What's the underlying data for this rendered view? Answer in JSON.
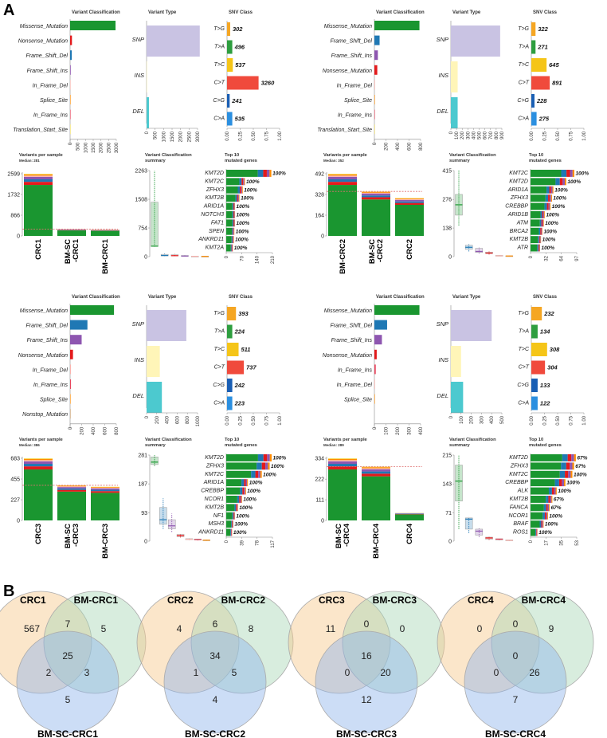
{
  "panel_labels": {
    "a": "A",
    "b": "B"
  },
  "common": {
    "vc_title": "Variant Classification",
    "vt_title": "Variant Type",
    "snv_title": "SNV Class",
    "vps_title": "Variants per sample",
    "vcs_title_1": "Variant Classification",
    "vcs_title_2": "summary",
    "top_title_1": "Top 10",
    "top_title_2": "mutated genes"
  },
  "colors": {
    "Missense_Mutation": "#1a9630",
    "Nonsense_Mutation": "#e31a1c",
    "Frame_Shift_Del": "#1f78b4",
    "Frame_Shift_Ins": "#8e56b0",
    "In_Frame_Del": "#fbb4ae",
    "In_Frame_Ins": "#e8475e",
    "Splice_Site": "#ff8c00",
    "Translation_Start_Site": "#f2e05a",
    "Nonstop_Mutation": "#c89c6b",
    "SNP": "#c9c3e3",
    "INS": "#fff5b8",
    "DEL": "#4cc9cf",
    "T>G": "#f5a623",
    "T>A": "#2e9e3f",
    "T>C": "#f5c518",
    "C>T": "#f04a3c",
    "C>G": "#1a5fb4",
    "C>A": "#2b8fe0",
    "genebar": "#1a9630",
    "median": "#e07070"
  },
  "chart_data": [
    {
      "type": "bar",
      "id": "crc1-variant-classification",
      "title": "Variant Classification",
      "categories": [
        "Missense_Mutation",
        "Nonsense_Mutation",
        "Frame_Shift_Del",
        "Frame_Shift_Ins",
        "In_Frame_Del",
        "Splice_Site",
        "In_Frame_Ins",
        "Translation_Start_Site"
      ],
      "values": [
        2950,
        120,
        110,
        40,
        15,
        15,
        5,
        3
      ],
      "xlim": [
        0,
        3000
      ],
      "xticks": [
        "0",
        "500",
        "1000",
        "1500",
        "2000",
        "2500",
        "3000"
      ]
    },
    {
      "type": "bar",
      "id": "crc1-variant-type",
      "title": "Variant Type",
      "categories": [
        "SNP",
        "INS",
        "DEL"
      ],
      "values": [
        3130,
        10,
        140
      ],
      "xlim": [
        0,
        3000
      ],
      "xticks": [
        "0",
        "500",
        "1000",
        "1500",
        "2000",
        "2500",
        "3000"
      ]
    },
    {
      "type": "bar",
      "id": "crc1-snv-class",
      "title": "SNV Class",
      "categories": [
        "T>G",
        "T>A",
        "T>C",
        "C>T",
        "C>G",
        "C>A"
      ],
      "values": [
        0.06,
        0.1,
        0.11,
        0.6,
        0.05,
        0.1
      ],
      "labels": [
        "302",
        "496",
        "537",
        "3260",
        "241",
        "535"
      ],
      "xlim": [
        0,
        1
      ],
      "xticks": [
        "0.00",
        "0.25",
        "0.50",
        "0.75",
        "1.00"
      ]
    },
    {
      "type": "bar",
      "id": "crc1-variants-per-sample",
      "title": "Variants per sample",
      "subtitle": "Median: 281",
      "categories": [
        "CRC1",
        "BM-SC\n-CRC1",
        "BM-CRC1"
      ],
      "totals": [
        2599,
        281,
        260
      ],
      "median": 281,
      "ylim": [
        0,
        2599
      ],
      "yticks": [
        "0",
        "866",
        "1732",
        "2599"
      ]
    },
    {
      "type": "boxplot",
      "id": "crc1-variant-classification-summary",
      "title": "Variant Classification summary",
      "series": [
        {
          "name": "Missense_Mutation",
          "min": 260,
          "q1": 270,
          "median": 275,
          "q3": 1430,
          "max": 2260
        },
        {
          "name": "Frame_Shift_Del",
          "min": 10,
          "q1": 20,
          "median": 30,
          "q3": 60,
          "max": 80
        },
        {
          "name": "Nonsense_Mutation",
          "min": 10,
          "q1": 20,
          "median": 25,
          "q3": 50,
          "max": 70
        },
        {
          "name": "Frame_Shift_Ins",
          "min": 5,
          "q1": 10,
          "median": 15,
          "q3": 30,
          "max": 40
        },
        {
          "name": "In_Frame_Del",
          "min": 2,
          "q1": 5,
          "median": 8,
          "q3": 12,
          "max": 15
        },
        {
          "name": "Splice_Site",
          "min": 2,
          "q1": 4,
          "median": 6,
          "q3": 10,
          "max": 12
        }
      ],
      "ylim": [
        0,
        2263
      ],
      "yticks": [
        "0",
        "754",
        "1508",
        "2263"
      ]
    },
    {
      "type": "bar",
      "id": "crc1-top10-genes",
      "title": "Top 10 mutated genes",
      "categories": [
        "KMT2D",
        "KMT2C",
        "ZFHX3",
        "KMT2B",
        "ARID1A",
        "NOTCH3",
        "FAT1",
        "SPEN",
        "ANKRD11",
        "KMT2A"
      ],
      "values": [
        205,
        85,
        75,
        60,
        40,
        40,
        40,
        37,
        35,
        30
      ],
      "labels": [
        "100%",
        "100%",
        "100%",
        "100%",
        "100%",
        "100%",
        "100%",
        "100%",
        "100%",
        "100%"
      ],
      "xlim": [
        0,
        210
      ],
      "xticks": [
        "0",
        "70",
        "140",
        "210"
      ]
    },
    {
      "type": "bar",
      "id": "crc2-variant-classification",
      "title": "Variant Classification",
      "categories": [
        "Missense_Mutation",
        "Frame_Shift_Del",
        "Frame_Shift_Ins",
        "Nonsense_Mutation",
        "In_Frame_Del",
        "Splice_Site",
        "In_Frame_Ins",
        "Translation_Start_Site"
      ],
      "values": [
        780,
        90,
        60,
        50,
        10,
        8,
        3,
        2
      ],
      "xlim": [
        0,
        800
      ],
      "xticks": [
        "0",
        "200",
        "400",
        "600",
        "800"
      ]
    },
    {
      "type": "bar",
      "id": "crc2-variant-type",
      "title": "Variant Type",
      "categories": [
        "SNP",
        "INS",
        "DEL"
      ],
      "values": [
        870,
        120,
        120
      ],
      "xlim": [
        0,
        900
      ],
      "xticks": [
        "0",
        "100",
        "200",
        "300",
        "400",
        "500",
        "600",
        "700",
        "800",
        "900"
      ]
    },
    {
      "type": "bar",
      "id": "crc2-snv-class",
      "title": "SNV Class",
      "categories": [
        "T>G",
        "T>A",
        "T>C",
        "C>T",
        "C>G",
        "C>A"
      ],
      "values": [
        0.08,
        0.08,
        0.29,
        0.35,
        0.06,
        0.1
      ],
      "labels": [
        "322",
        "271",
        "645",
        "891",
        "228",
        "275"
      ],
      "xlim": [
        0,
        1
      ],
      "xticks": [
        "0.00",
        "0.25",
        "0.50",
        "0.75",
        "1.00"
      ]
    },
    {
      "type": "bar",
      "id": "crc2-variants-per-sample",
      "title": "Variants per sample",
      "subtitle": "Median: 352",
      "categories": [
        "BM-CRC2",
        "BM-SC\n-CRC2",
        "CRC2"
      ],
      "totals": [
        492,
        352,
        300
      ],
      "median": 352,
      "ylim": [
        0,
        492
      ],
      "yticks": [
        "0",
        "164",
        "328",
        "492"
      ]
    },
    {
      "type": "boxplot",
      "id": "crc2-variant-classification-summary",
      "title": "Variant Classification summary",
      "series": [
        {
          "name": "Missense_Mutation",
          "min": 150,
          "q1": 200,
          "median": 250,
          "q3": 300,
          "max": 415
        },
        {
          "name": "Frame_Shift_Del",
          "min": 25,
          "q1": 35,
          "median": 45,
          "q3": 55,
          "max": 60
        },
        {
          "name": "Frame_Shift_Ins",
          "min": 15,
          "q1": 20,
          "median": 25,
          "q3": 40,
          "max": 45
        },
        {
          "name": "Nonsense_Mutation",
          "min": 10,
          "q1": 15,
          "median": 17,
          "q3": 22,
          "max": 25
        },
        {
          "name": "In_Frame_Del",
          "min": 2,
          "q1": 3,
          "median": 4,
          "q3": 6,
          "max": 8
        },
        {
          "name": "Splice_Site",
          "min": 1,
          "q1": 2,
          "median": 3,
          "q3": 4,
          "max": 5
        }
      ],
      "ylim": [
        0,
        415
      ],
      "yticks": [
        "0",
        "138",
        "276",
        "415"
      ]
    },
    {
      "type": "bar",
      "id": "crc2-top10-genes",
      "title": "Top 10 mutated genes",
      "categories": [
        "KMT2C",
        "KMT2D",
        "ARID1A",
        "ZFHX3",
        "CREBBP",
        "ARID1B",
        "ATM",
        "BRCA2",
        "KMT2B",
        "ATR"
      ],
      "values": [
        92,
        75,
        48,
        45,
        42,
        30,
        28,
        25,
        22,
        20
      ],
      "labels": [
        "100%",
        "100%",
        "100%",
        "100%",
        "100%",
        "100%",
        "100%",
        "100%",
        "100%",
        "100%"
      ],
      "xlim": [
        0,
        97
      ],
      "xticks": [
        "0",
        "32",
        "64",
        "97"
      ]
    },
    {
      "type": "bar",
      "id": "crc3-variant-classification",
      "title": "Variant Classification",
      "categories": [
        "Missense_Mutation",
        "Frame_Shift_Del",
        "Frame_Shift_Ins",
        "Nonsense_Mutation",
        "In_Frame_Del",
        "In_Frame_Ins",
        "Splice_Site",
        "Nonstop_Mutation"
      ],
      "values": [
        760,
        300,
        200,
        50,
        15,
        15,
        8,
        3
      ],
      "xlim": [
        0,
        800
      ],
      "xticks": [
        "0",
        "200",
        "400",
        "600",
        "800"
      ]
    },
    {
      "type": "bar",
      "id": "crc3-variant-type",
      "title": "Variant Type",
      "categories": [
        "SNP",
        "INS",
        "DEL"
      ],
      "values": [
        780,
        260,
        300
      ],
      "xlim": [
        0,
        1000
      ],
      "xticks": [
        "0",
        "200",
        "400",
        "600",
        "800",
        "1000"
      ]
    },
    {
      "type": "bar",
      "id": "crc3-snv-class",
      "title": "SNV Class",
      "categories": [
        "T>G",
        "T>A",
        "T>C",
        "C>T",
        "C>G",
        "C>A"
      ],
      "values": [
        0.17,
        0.1,
        0.22,
        0.32,
        0.1,
        0.1
      ],
      "labels": [
        "393",
        "224",
        "511",
        "737",
        "242",
        "223"
      ],
      "xlim": [
        0,
        1
      ],
      "xticks": [
        "0.00",
        "0.25",
        "0.50",
        "0.75",
        "1.00"
      ]
    },
    {
      "type": "bar",
      "id": "crc3-variants-per-sample",
      "title": "Variants per sample",
      "subtitle": "Median: 386",
      "categories": [
        "CRC3",
        "BM-SC\n-CRC3",
        "BM-CRC3"
      ],
      "totals": [
        683,
        386,
        370
      ],
      "median": 386,
      "ylim": [
        0,
        683
      ],
      "yticks": [
        "0",
        "227",
        "455",
        "683"
      ]
    },
    {
      "type": "boxplot",
      "id": "crc3-variant-classification-summary",
      "title": "Variant Classification summary",
      "series": [
        {
          "name": "Missense_Mutation",
          "min": 245,
          "q1": 250,
          "median": 258,
          "q3": 275,
          "max": 281
        },
        {
          "name": "Frame_Shift_Del",
          "min": 40,
          "q1": 55,
          "median": 70,
          "q3": 110,
          "max": 140
        },
        {
          "name": "Frame_Shift_Ins",
          "min": 30,
          "q1": 40,
          "median": 50,
          "q3": 70,
          "max": 90
        },
        {
          "name": "Nonsense_Mutation",
          "min": 12,
          "q1": 15,
          "median": 18,
          "q3": 22,
          "max": 25
        },
        {
          "name": "In_Frame_Del",
          "min": 3,
          "q1": 5,
          "median": 6,
          "q3": 8,
          "max": 10
        },
        {
          "name": "In_Frame_Ins",
          "min": 2,
          "q1": 4,
          "median": 5,
          "q3": 7,
          "max": 8
        },
        {
          "name": "Splice_Site",
          "min": 1,
          "q1": 2,
          "median": 3,
          "q3": 4,
          "max": 5
        }
      ],
      "ylim": [
        0,
        281
      ],
      "yticks": [
        "0",
        "93",
        "187",
        "281"
      ]
    },
    {
      "type": "bar",
      "id": "crc3-top10-genes",
      "title": "Top 10 mutated genes",
      "categories": [
        "KMT2D",
        "ZFHX3",
        "KMT2C",
        "ARID1A",
        "CREBBP",
        "NCOR1",
        "KMT2B",
        "NF1",
        "MSH3",
        "ANKRD11"
      ],
      "values": [
        115,
        110,
        90,
        55,
        50,
        40,
        30,
        22,
        18,
        15
      ],
      "labels": [
        "100%",
        "100%",
        "100%",
        "100%",
        "100%",
        "100%",
        "100%",
        "100%",
        "100%",
        "100%"
      ],
      "xlim": [
        0,
        117
      ],
      "xticks": [
        "0",
        "39",
        "78",
        "117"
      ]
    },
    {
      "type": "bar",
      "id": "crc4-variant-classification",
      "title": "Variant Classification",
      "categories": [
        "Missense_Mutation",
        "Frame_Shift_Del",
        "Frame_Shift_Ins",
        "Nonsense_Mutation",
        "In_Frame_Ins",
        "In_Frame_Del",
        "Splice_Site"
      ],
      "values": [
        390,
        110,
        65,
        20,
        12,
        5,
        3
      ],
      "xlim": [
        0,
        400
      ],
      "xticks": [
        "0",
        "100",
        "200",
        "300",
        "400"
      ]
    },
    {
      "type": "bar",
      "id": "crc4-variant-type",
      "title": "Variant Type",
      "categories": [
        "SNP",
        "INS",
        "DEL"
      ],
      "values": [
        400,
        100,
        120
      ],
      "xlim": [
        0,
        500
      ],
      "xticks": [
        "0",
        "100",
        "200",
        "300",
        "400",
        "500"
      ]
    },
    {
      "type": "bar",
      "id": "crc4-snv-class",
      "title": "SNV Class",
      "categories": [
        "T>G",
        "T>A",
        "T>C",
        "C>T",
        "C>G",
        "C>A"
      ],
      "values": [
        0.2,
        0.12,
        0.3,
        0.26,
        0.12,
        0.12
      ],
      "labels": [
        "232",
        "134",
        "308",
        "304",
        "133",
        "122"
      ],
      "xlim": [
        0,
        1
      ],
      "xticks": [
        "0.00",
        "0.25",
        "0.50",
        "0.75",
        "1.00"
      ]
    },
    {
      "type": "bar",
      "id": "crc4-variants-per-sample",
      "title": "Variants per sample",
      "subtitle": "Median: 289",
      "categories": [
        "BM-SC\n-CRC4",
        "BM-CRC4",
        "CRC4"
      ],
      "totals": [
        334,
        289,
        40
      ],
      "median": 289,
      "ylim": [
        0,
        334
      ],
      "yticks": [
        "0",
        "111",
        "222",
        "334"
      ]
    },
    {
      "type": "boxplot",
      "id": "crc4-variant-classification-summary",
      "title": "Variant Classification summary",
      "series": [
        {
          "name": "Missense_Mutation",
          "min": 30,
          "q1": 100,
          "median": 150,
          "q3": 190,
          "max": 215
        },
        {
          "name": "Frame_Shift_Del",
          "min": 20,
          "q1": 30,
          "median": 55,
          "q3": 58,
          "max": 60
        },
        {
          "name": "Frame_Shift_Ins",
          "min": 10,
          "q1": 15,
          "median": 25,
          "q3": 30,
          "max": 32
        },
        {
          "name": "Nonsense_Mutation",
          "min": 3,
          "q1": 5,
          "median": 8,
          "q3": 10,
          "max": 12
        },
        {
          "name": "In_Frame_Ins",
          "min": 2,
          "q1": 3,
          "median": 5,
          "q3": 6,
          "max": 7
        },
        {
          "name": "In_Frame_Del",
          "min": 0,
          "q1": 1,
          "median": 2,
          "q3": 3,
          "max": 4
        }
      ],
      "ylim": [
        0,
        215
      ],
      "yticks": [
        "0",
        "71",
        "143",
        "215"
      ]
    },
    {
      "type": "bar",
      "id": "crc4-top10-genes",
      "title": "Top 10 mutated genes",
      "categories": [
        "KMT2D",
        "ZFHX3",
        "KMT2C",
        "CREBBP",
        "ALK",
        "KMT2B",
        "FANCA",
        "NCOR1",
        "BRAF",
        "ROS1"
      ],
      "values": [
        52,
        50,
        48,
        40,
        30,
        25,
        22,
        20,
        15,
        8
      ],
      "labels": [
        "67%",
        "67%",
        "100%",
        "100%",
        "100%",
        "67%",
        "67%",
        "100%",
        "100%",
        "100%"
      ],
      "xlim": [
        0,
        53
      ],
      "xticks": [
        "0",
        "17",
        "35",
        "53"
      ]
    },
    {
      "type": "venn",
      "id": "venn-crc1",
      "sets": [
        "CRC1",
        "BM-CRC1",
        "BM-SC-CRC1"
      ],
      "regions": {
        "only_a": 567,
        "only_b": 5,
        "only_c": 5,
        "ab": 7,
        "ac": 2,
        "bc": 3,
        "abc": 25
      }
    },
    {
      "type": "venn",
      "id": "venn-crc2",
      "sets": [
        "CRC2",
        "BM-CRC2",
        "BM-SC-CRC2"
      ],
      "regions": {
        "only_a": 4,
        "only_b": 8,
        "only_c": 4,
        "ab": 6,
        "ac": 1,
        "bc": 5,
        "abc": 34
      }
    },
    {
      "type": "venn",
      "id": "venn-crc3",
      "sets": [
        "CRC3",
        "BM-CRC3",
        "BM-SC-CRC3"
      ],
      "regions": {
        "only_a": 11,
        "only_b": 0,
        "only_c": 12,
        "ab": 0,
        "ac": 0,
        "bc": 20,
        "abc": 16
      }
    },
    {
      "type": "venn",
      "id": "venn-crc4",
      "sets": [
        "CRC4",
        "BM-CRC4",
        "BM-SC-CRC4"
      ],
      "regions": {
        "only_a": 0,
        "only_b": 9,
        "only_c": 7,
        "ab": 0,
        "ac": 0,
        "bc": 26,
        "abc": 0
      }
    }
  ]
}
